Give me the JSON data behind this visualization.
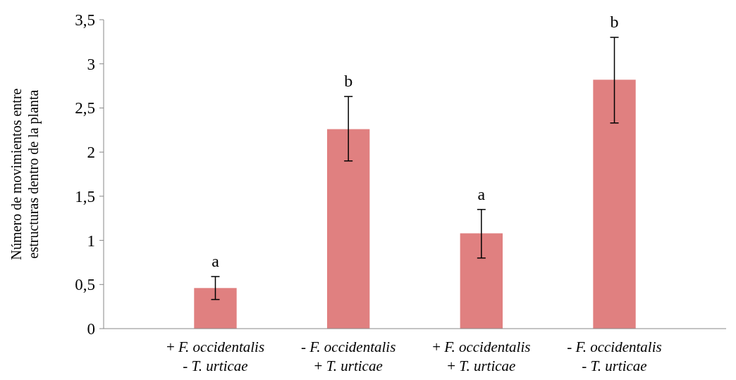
{
  "chart_data": {
    "type": "bar",
    "ylabel": "Número de movimientos entre\nestructuras dentro de la planta",
    "categories": [
      "+ F. occidentalis\n- T. urticae",
      "- F. occidentalis\n+ T. urticae",
      "+ F. occidentalis\n+ T. urticae",
      "- F. occidentalis\n- T. urticae"
    ],
    "values": [
      0.46,
      2.26,
      1.08,
      2.82
    ],
    "color": "#e08080",
    "errors": [
      [
        0.33,
        0.59
      ],
      [
        1.9,
        2.63
      ],
      [
        0.8,
        1.35
      ],
      [
        2.33,
        3.3
      ]
    ],
    "annotations": [
      "a",
      "b",
      "a",
      "b"
    ],
    "ylim": [
      0,
      3.5
    ],
    "yticks": [
      0,
      {
        "value": 0.5,
        "label": "0,5"
      },
      1,
      {
        "value": 1.5,
        "label": "1,5"
      },
      2,
      {
        "value": 2.5,
        "label": "2,5"
      },
      3,
      {
        "value": 3.5,
        "label": "3,5"
      }
    ],
    "grid": false
  }
}
